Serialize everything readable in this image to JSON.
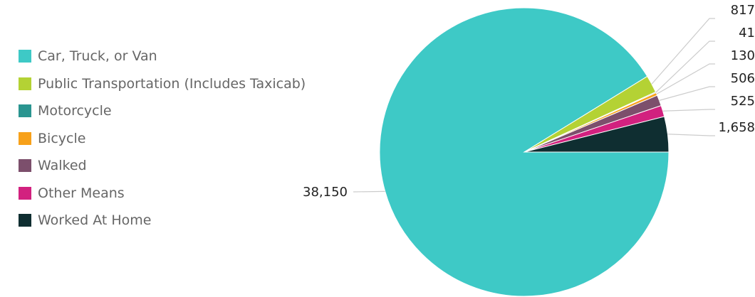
{
  "chart_data": {
    "type": "pie",
    "title": "",
    "categories": [
      "Car, Truck, or Van",
      "Public Transportation (Includes Taxicab)",
      "Motorcycle",
      "Bicycle",
      "Walked",
      "Other Means",
      "Worked At Home"
    ],
    "values": [
      38150,
      817,
      41,
      130,
      506,
      525,
      1658
    ],
    "value_labels": [
      "38,150",
      "817",
      "41",
      "130",
      "506",
      "525",
      "1,658"
    ],
    "colors": [
      "#3ec9c6",
      "#b4d234",
      "#2a9590",
      "#f7a11a",
      "#7c4f6c",
      "#d2217f",
      "#0f2e31"
    ],
    "legend_position": "left"
  }
}
